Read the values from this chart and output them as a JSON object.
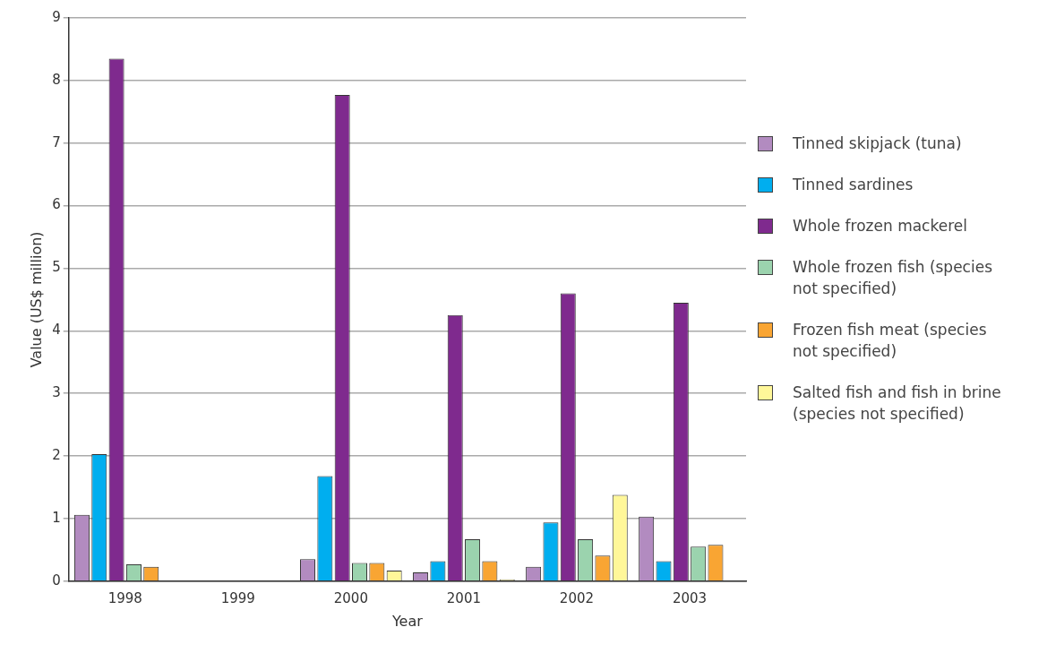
{
  "chart_data": {
    "type": "bar",
    "xlabel": "Year",
    "ylabel": "Value (US$ million)",
    "categories": [
      "1998",
      "1999",
      "2000",
      "2001",
      "2002",
      "2003"
    ],
    "series": [
      {
        "name": "Tinned skipjack (tuna)",
        "color": "#b28bc0",
        "values": [
          1.06,
          null,
          0.35,
          0.14,
          0.23,
          1.03
        ]
      },
      {
        "name": "Tinned sardines",
        "color": "#00aeef",
        "values": [
          2.03,
          null,
          1.68,
          0.32,
          0.94,
          0.32
        ]
      },
      {
        "name": "Whole frozen mackerel",
        "color": "#7f2a8e",
        "values": [
          8.35,
          null,
          7.77,
          4.25,
          4.6,
          4.45
        ]
      },
      {
        "name": "Whole frozen fish (species not specified)",
        "color": "#9bd3ae",
        "values": [
          0.27,
          null,
          0.29,
          0.67,
          0.67,
          0.55
        ]
      },
      {
        "name": "Frozen fish meat (species not specified)",
        "color": "#f9a533",
        "values": [
          0.23,
          null,
          0.29,
          0.32,
          0.41,
          0.58
        ]
      },
      {
        "name": "Salted fish and fish in brine (species not specified)",
        "color": "#fff799",
        "values": [
          null,
          null,
          0.17,
          0.03,
          1.38,
          null
        ]
      }
    ],
    "ylim": [
      0,
      9
    ],
    "yticks": [
      0,
      1,
      2,
      3,
      4,
      5,
      6,
      7,
      8,
      9
    ],
    "grid": "y",
    "legend": "right"
  }
}
